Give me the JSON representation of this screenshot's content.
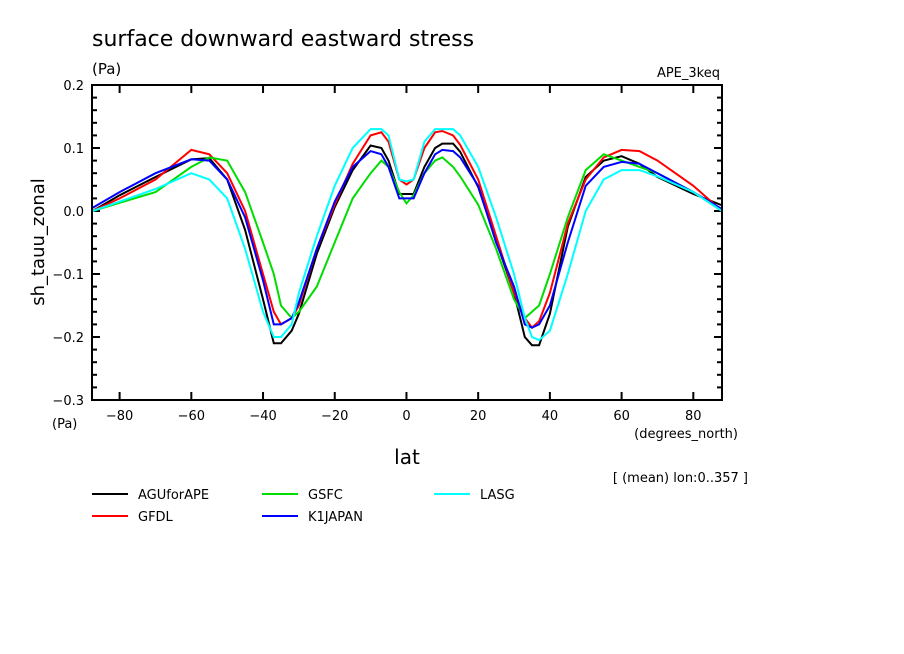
{
  "chart_data": {
    "type": "line",
    "title": "surface downward eastward stress",
    "units": "(Pa)",
    "experiment": "APE_3keq",
    "ylabel": "sh_tauu_zonal",
    "yunits": "(Pa)",
    "xlabel": "lat",
    "xunits": "(degrees_north)",
    "annotation": "[ (mean) lon:0..357 ]",
    "xlim": [
      -87.7,
      88
    ],
    "ylim": [
      -0.3,
      0.2
    ],
    "xticks": [
      -80,
      -60,
      -40,
      -20,
      0,
      20,
      40,
      60,
      80
    ],
    "xtick_labels": [
      "−80",
      "−60",
      "−40",
      "−20",
      "0",
      "20",
      "40",
      "60",
      "80"
    ],
    "yticks": [
      0.2,
      0.1,
      0.0,
      -0.1,
      -0.2,
      -0.3
    ],
    "ytick_labels": [
      "0.2",
      "0.1",
      "0.0",
      "−0.1",
      "−0.2",
      "−0.3"
    ],
    "grid": false,
    "legend_placement": "bottom",
    "x": [
      -87.5,
      -80,
      -70,
      -60,
      -55,
      -50,
      -45,
      -40,
      -37,
      -35,
      -32,
      -30,
      -25,
      -20,
      -15,
      -10,
      -7,
      -5,
      -2,
      0,
      2,
      5,
      8,
      10,
      13,
      15,
      20,
      25,
      30,
      33,
      35,
      37,
      40,
      45,
      50,
      55,
      60,
      65,
      70,
      80,
      88
    ],
    "series": [
      {
        "name": "AGUforAPE",
        "color": "#000000",
        "values": [
          0.0,
          0.025,
          0.054,
          0.082,
          0.084,
          0.05,
          -0.03,
          -0.14,
          -0.21,
          -0.21,
          -0.19,
          -0.163,
          -0.068,
          0.006,
          0.065,
          0.104,
          0.1,
          0.08,
          0.027,
          0.027,
          0.027,
          0.07,
          0.1,
          0.107,
          0.107,
          0.094,
          0.038,
          -0.047,
          -0.13,
          -0.2,
          -0.213,
          -0.213,
          -0.163,
          -0.025,
          0.054,
          0.08,
          0.087,
          0.075,
          0.054,
          0.027,
          0.009
        ]
      },
      {
        "name": "GFDL",
        "color": "#ff0000",
        "values": [
          0.0,
          0.02,
          0.05,
          0.097,
          0.09,
          0.06,
          0.0,
          -0.1,
          -0.16,
          -0.18,
          -0.17,
          -0.15,
          -0.06,
          0.01,
          0.075,
          0.12,
          0.125,
          0.11,
          0.05,
          0.042,
          0.05,
          0.1,
          0.125,
          0.127,
          0.12,
          0.105,
          0.05,
          -0.04,
          -0.13,
          -0.17,
          -0.185,
          -0.175,
          -0.13,
          -0.02,
          0.05,
          0.085,
          0.097,
          0.095,
          0.08,
          0.04,
          0.0
        ]
      },
      {
        "name": "GSFC",
        "color": "#00dd00",
        "values": [
          0.0,
          0.013,
          0.03,
          0.07,
          0.085,
          0.08,
          0.03,
          -0.05,
          -0.1,
          -0.15,
          -0.17,
          -0.16,
          -0.12,
          -0.05,
          0.02,
          0.06,
          0.08,
          0.07,
          0.03,
          0.012,
          0.025,
          0.06,
          0.08,
          0.085,
          0.07,
          0.055,
          0.01,
          -0.06,
          -0.14,
          -0.17,
          -0.16,
          -0.15,
          -0.1,
          -0.01,
          0.065,
          0.09,
          0.08,
          0.07,
          0.06,
          0.03,
          0.0
        ]
      },
      {
        "name": "K1JAPAN",
        "color": "#0000ff",
        "values": [
          0.005,
          0.03,
          0.06,
          0.082,
          0.08,
          0.05,
          -0.01,
          -0.11,
          -0.18,
          -0.18,
          -0.17,
          -0.145,
          -0.06,
          0.015,
          0.07,
          0.095,
          0.09,
          0.07,
          0.02,
          0.02,
          0.02,
          0.06,
          0.09,
          0.097,
          0.095,
          0.085,
          0.04,
          -0.05,
          -0.12,
          -0.18,
          -0.185,
          -0.18,
          -0.15,
          -0.05,
          0.04,
          0.07,
          0.078,
          0.075,
          0.06,
          0.03,
          0.003
        ]
      },
      {
        "name": "LASG",
        "color": "#00ffff",
        "values": [
          0.0,
          0.015,
          0.035,
          0.06,
          0.05,
          0.02,
          -0.06,
          -0.16,
          -0.2,
          -0.2,
          -0.18,
          -0.13,
          -0.04,
          0.04,
          0.1,
          0.13,
          0.13,
          0.12,
          0.05,
          0.047,
          0.05,
          0.11,
          0.13,
          0.13,
          0.13,
          0.12,
          0.07,
          -0.01,
          -0.1,
          -0.17,
          -0.2,
          -0.205,
          -0.19,
          -0.1,
          0.0,
          0.05,
          0.065,
          0.065,
          0.055,
          0.03,
          0.0
        ]
      }
    ]
  }
}
